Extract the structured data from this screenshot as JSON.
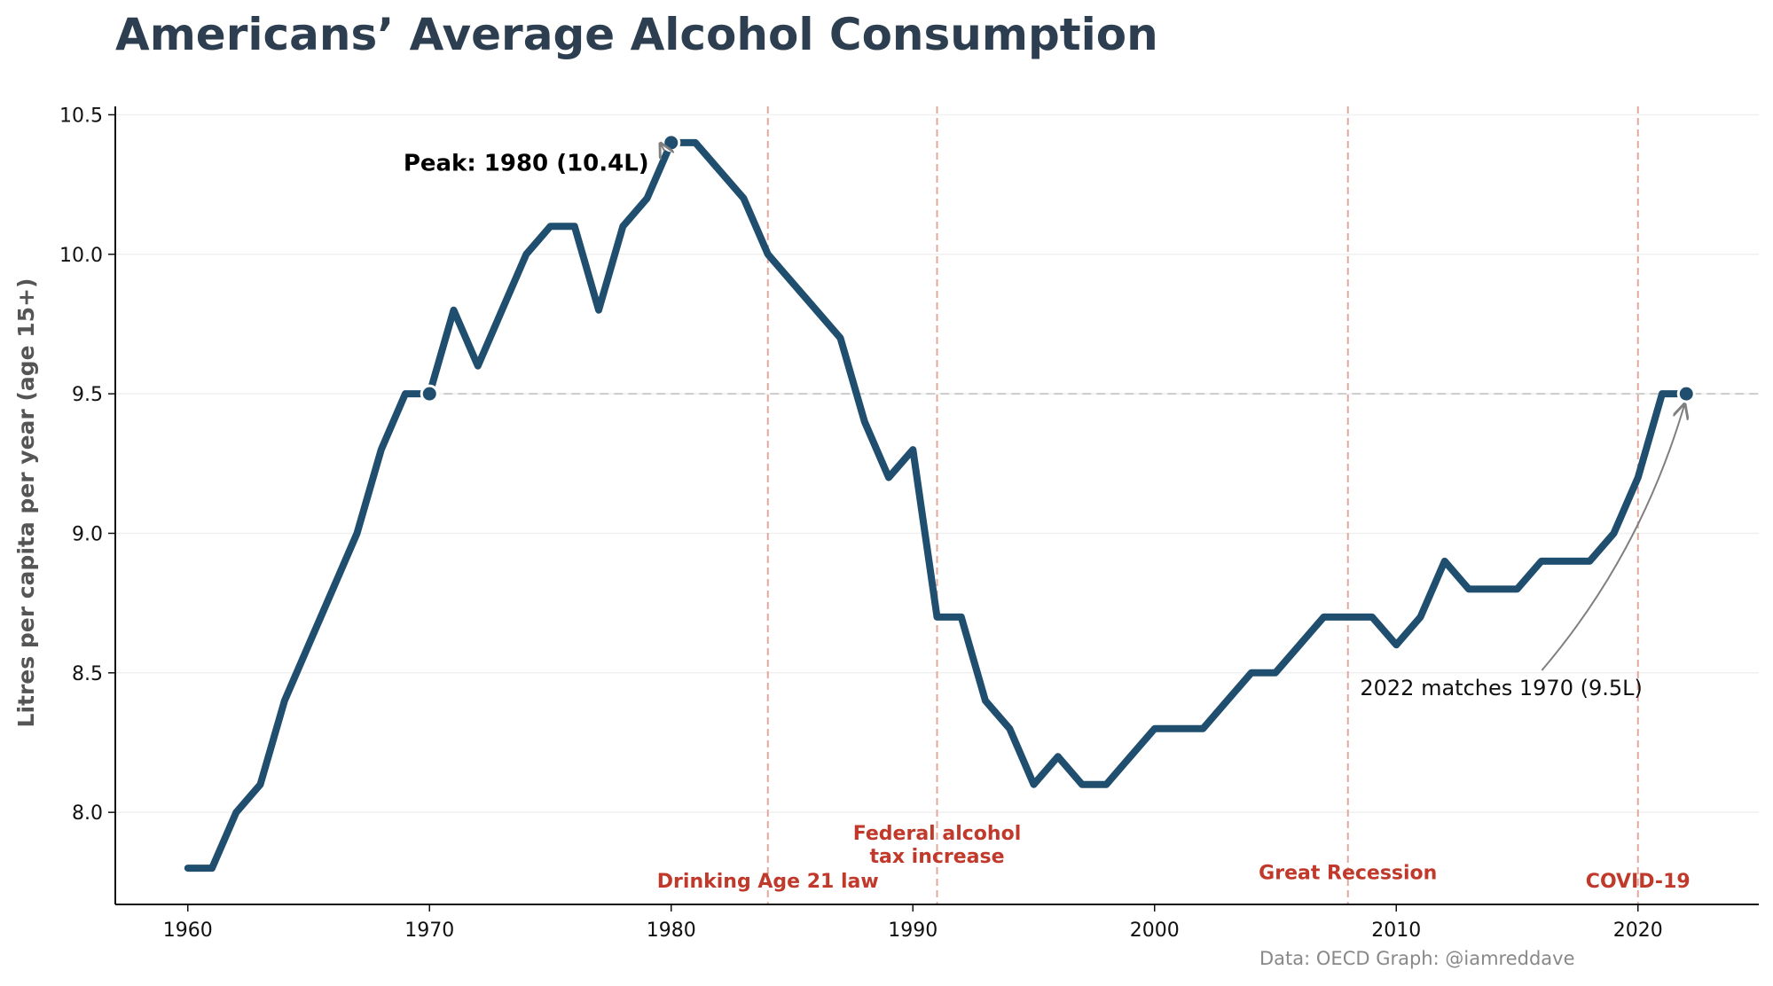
{
  "chart_data": {
    "type": "line",
    "title": "Americans’ Average Alcohol Consumption",
    "ylabel": "Litres per capita per year (age 15+)",
    "xlabel": "",
    "xlim": [
      1957,
      2025
    ],
    "ylim": [
      7.67,
      10.53
    ],
    "x_ticks": [
      1960,
      1970,
      1980,
      1990,
      2000,
      2010,
      2020
    ],
    "y_ticks": [
      "8.0",
      "8.5",
      "9.0",
      "9.5",
      "10.0",
      "10.5"
    ],
    "grid": "horizontal, faint",
    "colors": {
      "line": "#1f4e6e",
      "event": "#e2a89e",
      "event_text": "#c0392b",
      "reference": "#cccccc",
      "arrow": "#7f7f7f",
      "title": "#2c3e50"
    },
    "series": [
      {
        "x": [
          1960,
          1961,
          1962,
          1963,
          1964,
          1965,
          1966,
          1967,
          1968,
          1969,
          1970,
          1971,
          1972,
          1973,
          1974,
          1975,
          1976,
          1977,
          1978,
          1979,
          1980,
          1981,
          1982,
          1983,
          1984,
          1985,
          1986,
          1987,
          1988,
          1989,
          1990,
          1991,
          1992,
          1993,
          1994,
          1995,
          1996,
          1997,
          1998,
          1999,
          2000,
          2001,
          2002,
          2003,
          2004,
          2005,
          2006,
          2007,
          2008,
          2009,
          2010,
          2011,
          2012,
          2013,
          2014,
          2015,
          2016,
          2017,
          2018,
          2019,
          2020,
          2021,
          2022
        ],
        "values": [
          7.8,
          7.8,
          8.0,
          8.1,
          8.4,
          8.6,
          8.8,
          9.0,
          9.3,
          9.5,
          9.5,
          9.8,
          9.6,
          9.8,
          10.0,
          10.1,
          10.1,
          9.8,
          10.1,
          10.2,
          10.4,
          10.4,
          10.3,
          10.2,
          10.0,
          9.9,
          9.8,
          9.7,
          9.4,
          9.2,
          9.3,
          8.7,
          8.7,
          8.4,
          8.3,
          8.1,
          8.2,
          8.1,
          8.1,
          8.2,
          8.3,
          8.3,
          8.3,
          8.4,
          8.5,
          8.5,
          8.6,
          8.7,
          8.7,
          8.7,
          8.6,
          8.7,
          8.9,
          8.8,
          8.8,
          8.8,
          8.9,
          8.9,
          8.9,
          9.0,
          9.2,
          9.5,
          9.5
        ]
      }
    ],
    "reference_line": {
      "y": 9.5,
      "from_x": 1970,
      "to_x": 2025
    },
    "markers": [
      {
        "x": 1970,
        "y": 9.5
      },
      {
        "x": 1980,
        "y": 10.4
      },
      {
        "x": 2022,
        "y": 9.5
      }
    ],
    "events": [
      {
        "x": 1984,
        "label_lines": [
          "Drinking Age 21 law"
        ],
        "label_y": 7.73
      },
      {
        "x": 1991,
        "label_lines": [
          "Federal alcohol",
          "tax increase"
        ],
        "label_y": 7.82
      },
      {
        "x": 2008,
        "label_lines": [
          "Great Recession"
        ],
        "label_y": 7.76
      },
      {
        "x": 2020,
        "label_lines": [
          "COVID-19"
        ],
        "label_y": 7.73
      }
    ],
    "annotations": [
      {
        "text": "Peak: 1980 (10.4L)",
        "point": [
          1980,
          10.4
        ],
        "text_x": 1974,
        "text_y": 10.3
      },
      {
        "text": "2022 matches 1970 (9.5L)",
        "point": [
          2022,
          9.5
        ],
        "text_x": 2008.5,
        "text_y": 8.42
      }
    ],
    "source": "Data: OECD Graph: @iamreddave"
  }
}
